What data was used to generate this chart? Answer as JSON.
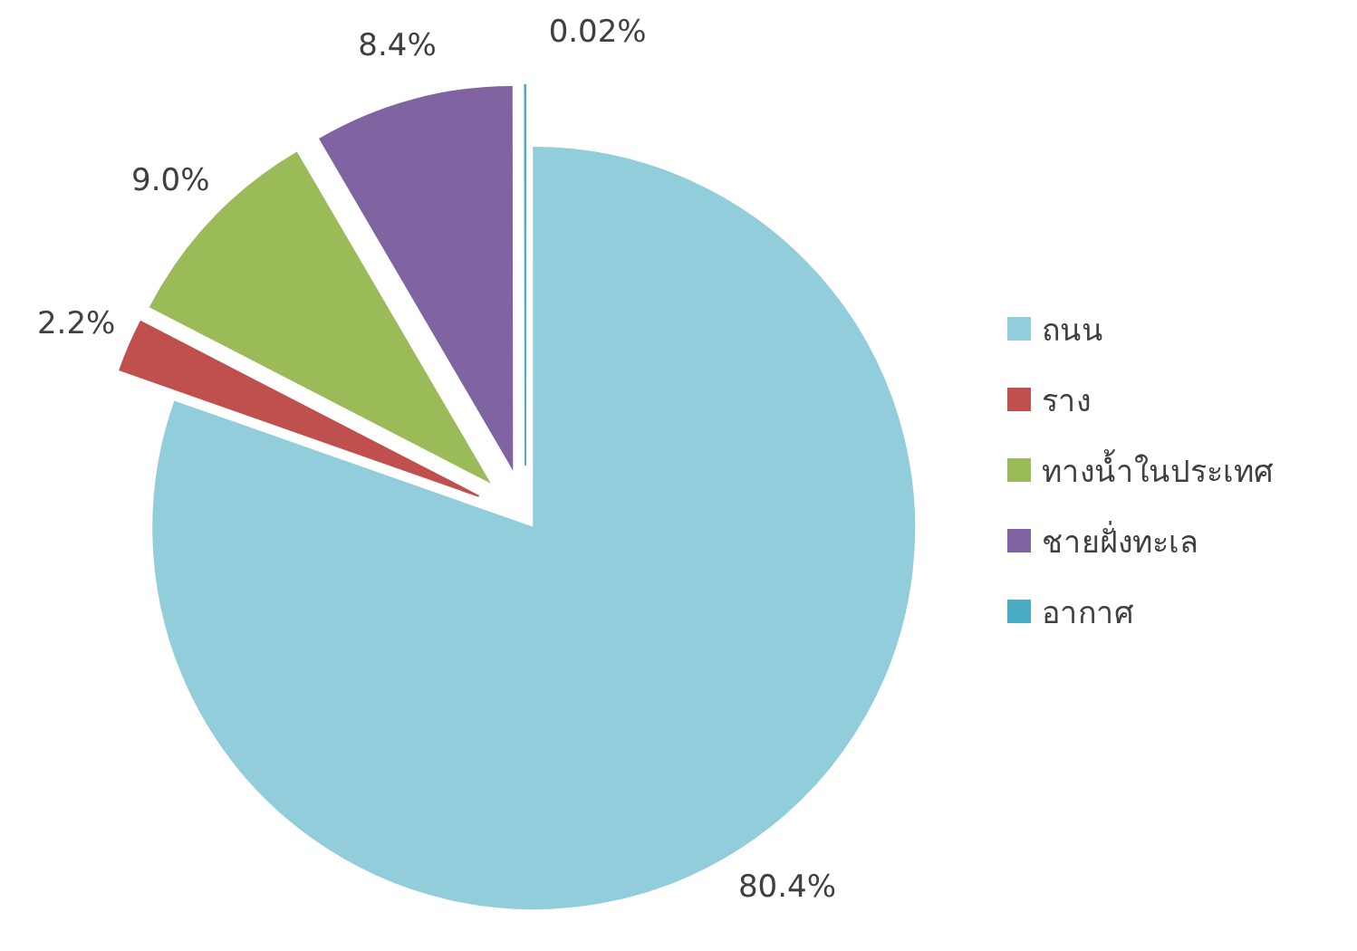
{
  "chart_data": {
    "type": "pie",
    "categories": [
      "ถนน",
      "ราง",
      "ทางน้ำในประเทศ",
      "ชายฝั่งทะเล",
      "อากาศ"
    ],
    "values": [
      80.4,
      2.2,
      9.0,
      8.4,
      0.02
    ],
    "colors": [
      "#92cddc",
      "#c0504d",
      "#9bbb59",
      "#8064a2",
      "#4bacc6"
    ],
    "value_labels": [
      "80.4%",
      "2.2%",
      "9.0%",
      "8.4%",
      "0.02%"
    ],
    "legend": "right"
  }
}
